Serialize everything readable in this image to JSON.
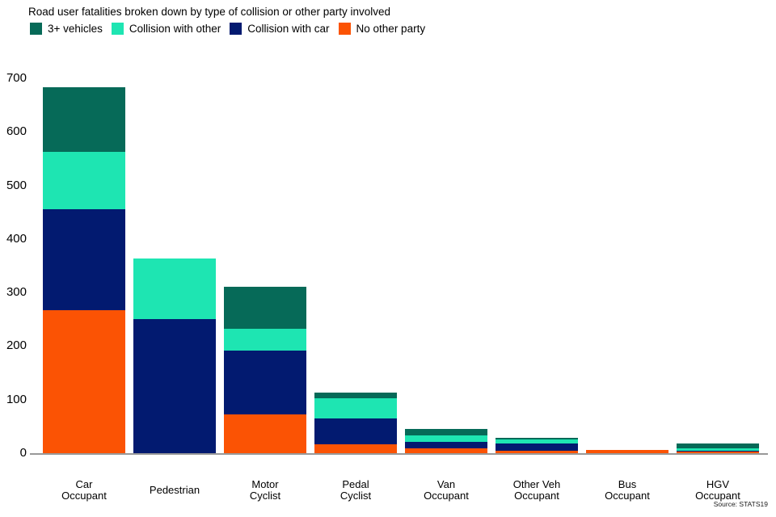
{
  "title": "Road user fatalities broken down by type of collision or other party involved",
  "source": "Source: STATS19",
  "axis_color": "#999999",
  "chart_data": {
    "type": "bar",
    "stacked": true,
    "title": "Road user fatalities broken down by type of collision or other party involved",
    "xlabel": "",
    "ylabel": "",
    "ylim": [
      0,
      700
    ],
    "y_ticks": [
      0,
      100,
      200,
      300,
      400,
      500,
      600,
      700
    ],
    "grid": false,
    "legend_position": "top",
    "categories": [
      "Car\nOccupant",
      "Pedestrian",
      "Motor\nCyclist",
      "Pedal\nCyclist",
      "Van\nOccupant",
      "Other Veh\nOccupant",
      "Bus\nOccupant",
      "HGV\nOccupant"
    ],
    "series": [
      {
        "name": "3+ vehicles",
        "color": "#066A58",
        "values": [
          120,
          0,
          78,
          11,
          12,
          3,
          0,
          9
        ]
      },
      {
        "name": "Collision with other",
        "color": "#1EE5B2",
        "values": [
          107,
          112,
          42,
          37,
          12,
          8,
          0,
          4
        ]
      },
      {
        "name": "Collision with car",
        "color": "#021A70",
        "values": [
          189,
          251,
          119,
          48,
          12,
          13,
          0,
          2
        ]
      },
      {
        "name": "No other party",
        "color": "#FB5304",
        "values": [
          267,
          0,
          72,
          17,
          9,
          5,
          6,
          3
        ]
      }
    ],
    "totals": [
      683,
      363,
      311,
      113,
      45,
      29,
      6,
      18
    ]
  }
}
